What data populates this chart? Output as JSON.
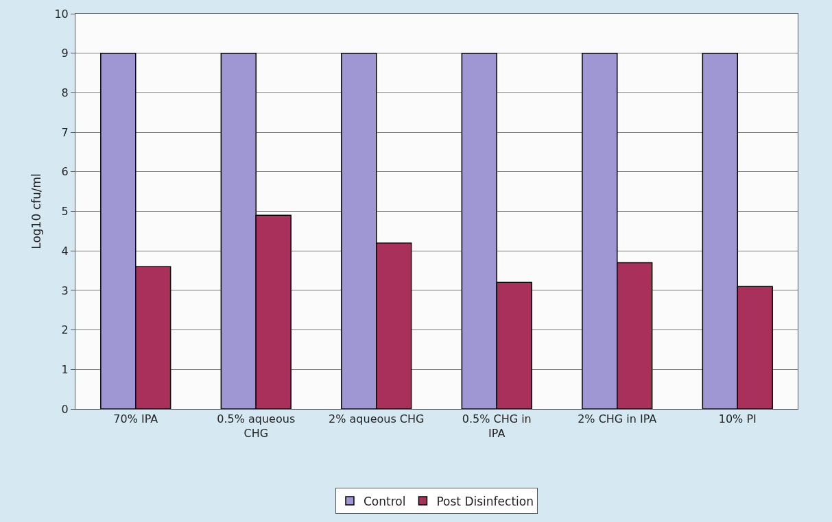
{
  "chart_data": {
    "type": "bar",
    "ylabel": "Log10 cfu/ml",
    "categories": [
      "70% IPA",
      "0.5% aqueous CHG",
      "2% aqueous CHG",
      "0.5% CHG in IPA",
      "2% CHG in IPA",
      "10% PI"
    ],
    "series": [
      {
        "name": "Control",
        "color": "#9f97d3",
        "values": [
          9.0,
          9.0,
          9.0,
          9.0,
          9.0,
          9.0
        ]
      },
      {
        "name": "Post Disinfection",
        "color": "#a8305a",
        "values": [
          3.6,
          4.9,
          4.2,
          3.2,
          3.7,
          3.1
        ]
      }
    ],
    "ylim": [
      0,
      10
    ],
    "yticks": [
      0,
      1,
      2,
      3,
      4,
      5,
      6,
      7,
      8,
      9,
      10
    ],
    "grid": "y",
    "legend": "bottom"
  }
}
